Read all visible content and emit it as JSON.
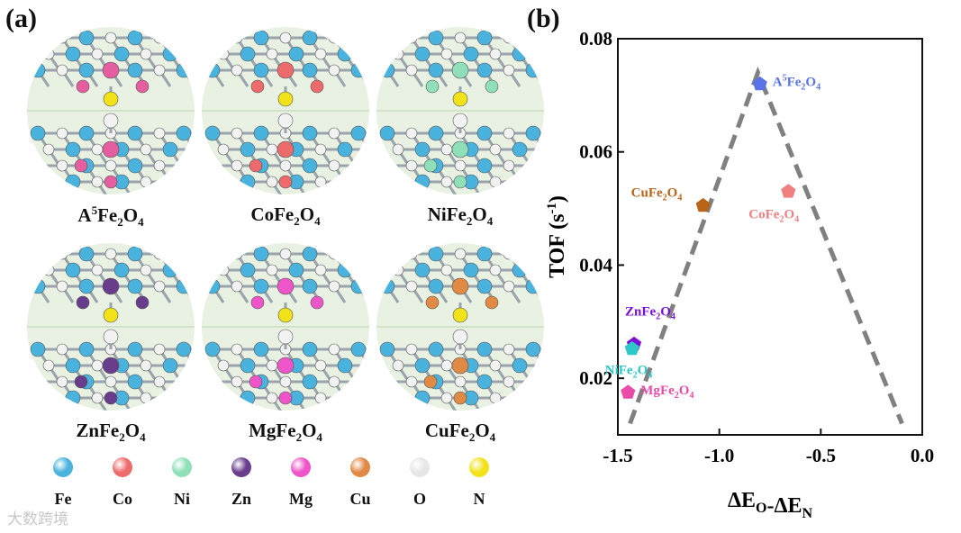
{
  "panels": {
    "a": "(a)",
    "b": "(b)"
  },
  "materials": [
    {
      "base": "A",
      "sup": "5",
      "tail": "Fe",
      "s1": "2",
      "o": "O",
      "s2": "4",
      "dopant_color": "#e55fa0"
    },
    {
      "base": "Co",
      "sup": "",
      "tail": "Fe",
      "s1": "2",
      "o": "O",
      "s2": "4",
      "dopant_color": "#ee6b6b"
    },
    {
      "base": "Ni",
      "sup": "",
      "tail": "Fe",
      "s1": "2",
      "o": "O",
      "s2": "4",
      "dopant_color": "#8fe0b8"
    },
    {
      "base": "Zn",
      "sup": "",
      "tail": "Fe",
      "s1": "2",
      "o": "O",
      "s2": "4",
      "dopant_color": "#6a3d8c"
    },
    {
      "base": "Mg",
      "sup": "",
      "tail": "Fe",
      "s1": "2",
      "o": "O",
      "s2": "4",
      "dopant_color": "#ee55c8"
    },
    {
      "base": "Cu",
      "sup": "",
      "tail": "Fe",
      "s1": "2",
      "o": "O",
      "s2": "4",
      "dopant_color": "#e08a45"
    }
  ],
  "legend": [
    {
      "label": "Fe",
      "color": "#4ab3dd"
    },
    {
      "label": "Co",
      "color": "#ee6b6b"
    },
    {
      "label": "Ni",
      "color": "#8fe0b8"
    },
    {
      "label": "Zn",
      "color": "#6a3d8c"
    },
    {
      "label": "Mg",
      "color": "#ee55c8"
    },
    {
      "label": "Cu",
      "color": "#e08a45"
    },
    {
      "label": "O",
      "color": "#e6e6e6"
    },
    {
      "label": "N",
      "color": "#f2e21a"
    }
  ],
  "watermark": "大数跨境",
  "chart_data": {
    "type": "scatter",
    "xlabel": {
      "main": "ΔE",
      "s1": "O",
      "mid": "-ΔE",
      "s2": "N"
    },
    "ylabel": {
      "main": "TOF (s",
      "sup": "-1",
      "end": ")"
    },
    "xlim": [
      -1.5,
      0.0
    ],
    "ylim": [
      0.01,
      0.08
    ],
    "xticks": [
      "-1.5",
      "-1.0",
      "-0.5",
      "0.0"
    ],
    "xtick_values": [
      -1.5,
      -1.0,
      -0.5,
      0.0
    ],
    "yticks": [
      "0.02",
      "0.04",
      "0.06",
      "0.08"
    ],
    "ytick_values": [
      0.02,
      0.04,
      0.06,
      0.08
    ],
    "volcano_line": [
      [
        -1.44,
        0.012
      ],
      [
        -0.81,
        0.074
      ],
      [
        -0.1,
        0.012
      ]
    ],
    "points": [
      {
        "label": "A",
        "sup": "5",
        "rest": "Fe",
        "s1": "2",
        "o": "O",
        "s2": "4",
        "x": -0.8,
        "y": 0.072,
        "color": "#5b73e6",
        "label_pos": "right"
      },
      {
        "label": "Co",
        "sup": "",
        "rest": "Fe",
        "s1": "2",
        "o": "O",
        "s2": "4",
        "x": -0.66,
        "y": 0.053,
        "color": "#f08080",
        "label_pos": "below"
      },
      {
        "label": "Cu",
        "sup": "",
        "rest": "Fe",
        "s1": "2",
        "o": "O",
        "s2": "4",
        "x": -1.08,
        "y": 0.0505,
        "color": "#b8651a",
        "label_pos": "upper-left"
      },
      {
        "label": "Zn",
        "sup": "",
        "rest": "Fe",
        "s1": "2",
        "o": "O",
        "s2": "4",
        "x": -1.42,
        "y": 0.026,
        "color": "#7a10d8",
        "label_pos": "above"
      },
      {
        "label": "Ni",
        "sup": "",
        "rest": "Fe",
        "s1": "2",
        "o": "O",
        "s2": "4",
        "x": -1.43,
        "y": 0.0252,
        "color": "#2ec8c8",
        "label_pos": "below"
      },
      {
        "label": "Mg",
        "sup": "",
        "rest": "Fe",
        "s1": "2",
        "o": "O",
        "s2": "4",
        "x": -1.45,
        "y": 0.0175,
        "color": "#e84ba8",
        "label_pos": "right"
      }
    ]
  }
}
